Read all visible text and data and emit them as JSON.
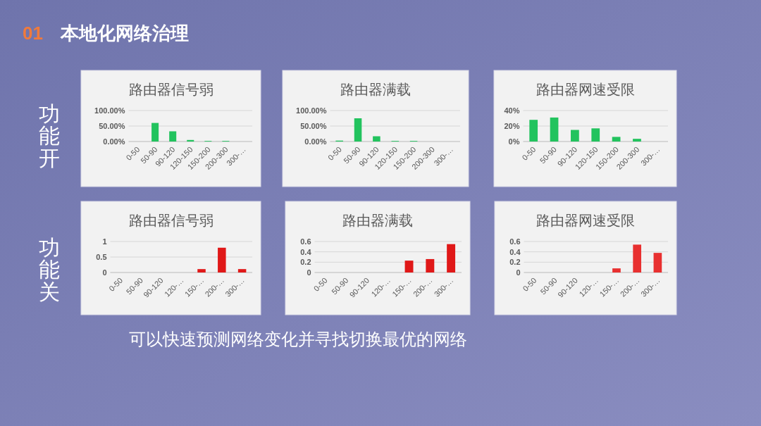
{
  "chart_data": [
    {
      "type": "bar",
      "title": "路由器信号弱",
      "categories": [
        "0-50",
        "50-90",
        "90-120",
        "120-150",
        "150-200",
        "200-300",
        "300-…"
      ],
      "values": [
        0,
        60,
        33,
        5,
        2,
        2,
        0
      ],
      "color": "#22c35e",
      "ylim": [
        0,
        100
      ],
      "yticks": [
        {
          "value": 0,
          "label": "0.00%"
        },
        {
          "value": 50,
          "label": "50.00%"
        },
        {
          "value": 100,
          "label": "100.00%"
        }
      ],
      "grid": "y",
      "annotations": [
        "01",
        "本地化网络治理",
        "功能开"
      ]
    },
    {
      "type": "bar",
      "title": "路由器满载",
      "categories": [
        "0-50",
        "50-90",
        "90-120",
        "120-150",
        "150-200",
        "200-300",
        "300-…"
      ],
      "values": [
        3,
        75,
        17,
        2,
        2,
        0,
        0
      ],
      "color": "#22c35e",
      "ylim": [
        0,
        100
      ],
      "yticks": [
        {
          "value": 0,
          "label": "0.00%"
        },
        {
          "value": 50,
          "label": "50.00%"
        },
        {
          "value": 100,
          "label": "100.00%"
        }
      ],
      "grid": "y"
    },
    {
      "type": "bar",
      "title": "路由器网速受限",
      "categories": [
        "0-50",
        "50-90",
        "90-120",
        "120-150",
        "150-200",
        "200-300",
        "300-…"
      ],
      "values": [
        28,
        31,
        15,
        17,
        6,
        3.5,
        0
      ],
      "color": "#22c35e",
      "ylim": [
        0,
        40
      ],
      "yticks": [
        {
          "value": 0,
          "label": "0%"
        },
        {
          "value": 20,
          "label": "20%"
        },
        {
          "value": 40,
          "label": "40%"
        }
      ],
      "grid": "y"
    },
    {
      "type": "bar",
      "title": "路由器信号弱",
      "categories": [
        "0-50",
        "50-90",
        "90-120",
        "120-…",
        "150-…",
        "200-…",
        "300-…"
      ],
      "values": [
        0,
        0,
        0,
        0,
        0.11,
        0.8,
        0.11
      ],
      "color": "#e01818",
      "ylim": [
        0,
        1
      ],
      "yticks": [
        0,
        0.5,
        1
      ],
      "grid": "y",
      "annotations": [
        "功能关",
        "可以快速预测网络变化并寻找切换最优的网络"
      ]
    },
    {
      "type": "bar",
      "title": "路由器满载",
      "categories": [
        "0-50",
        "50-90",
        "90-120",
        "120-…",
        "150-…",
        "200-…",
        "300-…"
      ],
      "values": [
        0,
        0,
        0,
        0,
        0.23,
        0.26,
        0.55
      ],
      "color": "#e01818",
      "ylim": [
        0,
        0.6
      ],
      "yticks": [
        0,
        0.2,
        0.4,
        0.6
      ],
      "grid": "y"
    },
    {
      "type": "bar",
      "title": "路由器网速受限",
      "categories": [
        "0-50",
        "50-90",
        "90-120",
        "120-…",
        "150-…",
        "200-…",
        "300-…"
      ],
      "values": [
        0,
        0,
        0,
        0,
        0.08,
        0.54,
        0.38
      ],
      "color": "#e83030",
      "ylim": [
        0,
        0.6
      ],
      "yticks": [
        0,
        0.2,
        0.4,
        0.6
      ],
      "grid": "y"
    }
  ]
}
